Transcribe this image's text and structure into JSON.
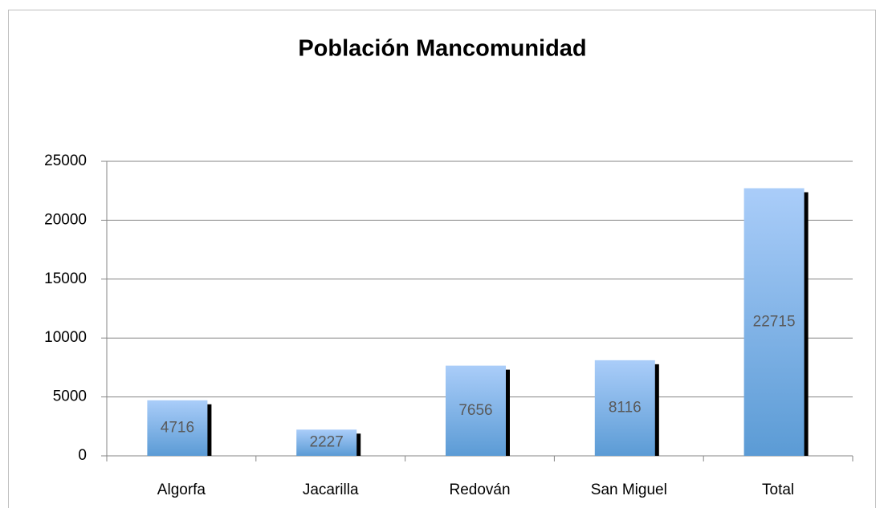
{
  "chart_data": {
    "type": "bar",
    "title": "Población Mancomunidad",
    "categories": [
      "Algorfa",
      "Jacarilla",
      "Redován",
      "San Miguel",
      "Total"
    ],
    "values": [
      4716,
      2227,
      7656,
      8116,
      22715
    ],
    "color": "#5b9bd5",
    "ylim": [
      0,
      25000
    ],
    "yticks": [
      0,
      5000,
      10000,
      15000,
      20000,
      25000
    ],
    "grid": true
  }
}
